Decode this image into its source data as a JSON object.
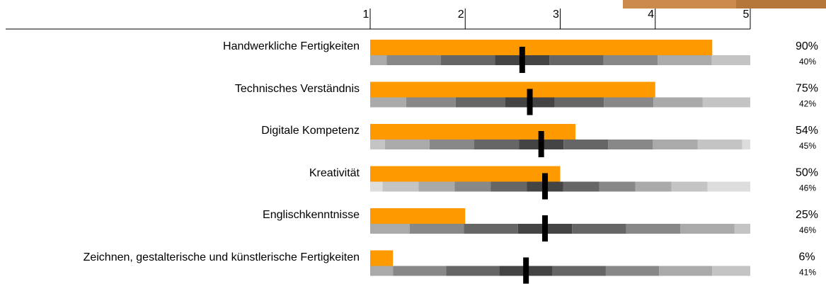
{
  "chart_data": {
    "type": "bullet",
    "categories": [
      "Handwerkliche Fertigkeiten",
      "Technisches Verständnis",
      "Digitale Kompetenz",
      "Kreativität",
      "Englischkenntnisse",
      "Zeichnen, gestalterische und künstlerische Fertigkeiten"
    ],
    "values": [
      90,
      75,
      54,
      50,
      25,
      6
    ],
    "value_labels": [
      "90%",
      "75%",
      "54%",
      "50%",
      "25%",
      "6%"
    ],
    "markers": [
      40,
      42,
      45,
      46,
      46,
      41
    ],
    "marker_labels": [
      "40%",
      "42%",
      "45%",
      "46%",
      "46%",
      "41%"
    ],
    "spread": [
      0.57,
      0.52,
      0.47,
      0.38,
      0.57,
      0.56
    ],
    "color": "#ff9900",
    "marker_color": "#000000",
    "xlim": [
      1,
      5
    ],
    "xticks": [
      1,
      2,
      3,
      4,
      5
    ],
    "x2lim": [
      0,
      100
    ]
  }
}
